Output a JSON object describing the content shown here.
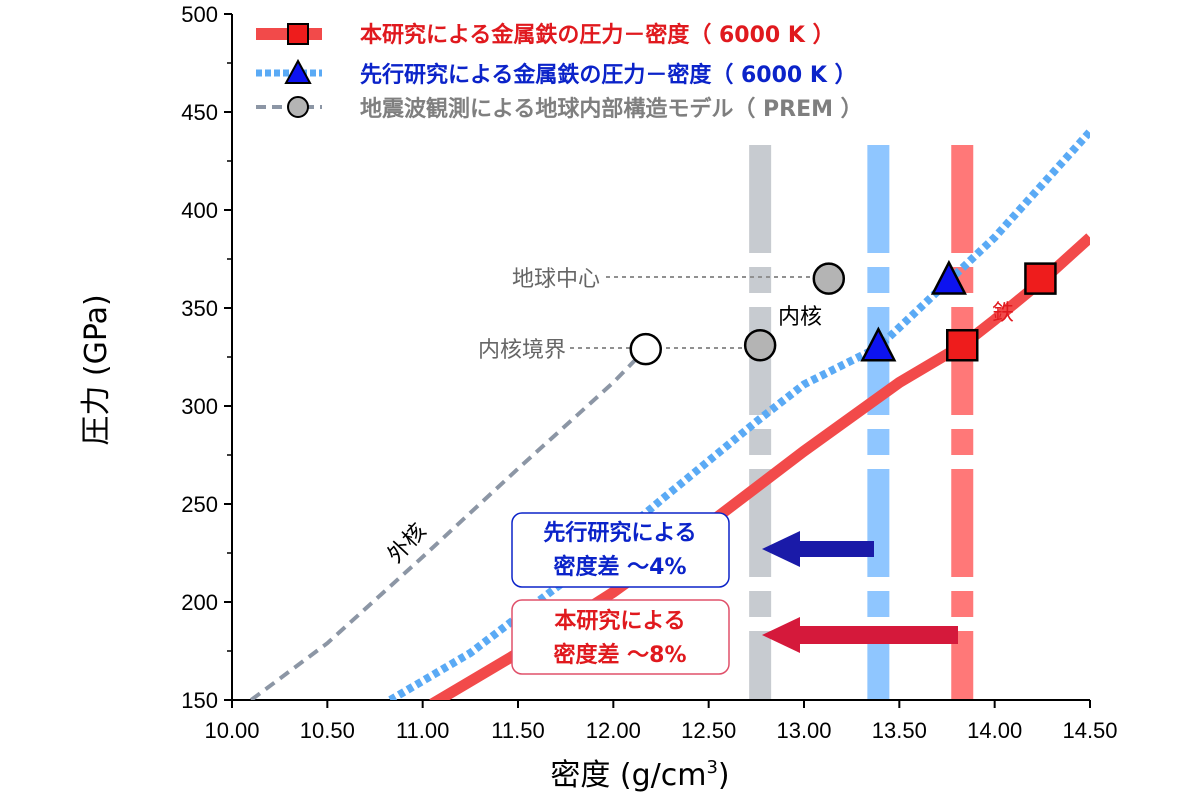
{
  "chart_data": {
    "type": "line",
    "xlabel": "密度 (g/cm",
    "xlabel_sup": "3",
    "xlabel_close": ")",
    "ylabel": "圧力 (GPa)",
    "xlim": [
      10.0,
      14.5
    ],
    "ylim": [
      150,
      500
    ],
    "xticks": [
      "10.00",
      "10.50",
      "11.00",
      "11.50",
      "12.00",
      "12.50",
      "13.00",
      "13.50",
      "14.00",
      "14.50"
    ],
    "yticks": [
      "150",
      "200",
      "250",
      "300",
      "350",
      "400",
      "450",
      "500"
    ],
    "legend": [
      {
        "label": "本研究による金属鉄の圧力－密度（ 6000 K ）",
        "color": "#e0191e"
      },
      {
        "label": "先行研究による金属鉄の圧力－密度（ 6000 K ）",
        "color": "#0b23c9"
      },
      {
        "label": "地震波観測による地球内部構造モデル（ PREM ）",
        "color": "#7f7f7f"
      }
    ],
    "series": [
      {
        "name": "本研究による金属鉄の圧力－密度（ 6000 K ）",
        "color": "#f24a4a",
        "marker": "square",
        "curve": [
          [
            11.05,
            148
          ],
          [
            11.5,
            174
          ],
          [
            12.0,
            205
          ],
          [
            12.5,
            240
          ],
          [
            13.0,
            277
          ],
          [
            13.5,
            312
          ],
          [
            13.83,
            331
          ],
          [
            14.0,
            344
          ],
          [
            14.25,
            364
          ],
          [
            14.5,
            386
          ]
        ],
        "points": [
          [
            13.83,
            331
          ],
          [
            14.24,
            365
          ]
        ]
      },
      {
        "name": "先行研究による金属鉄の圧力－密度（ 6000 K ）",
        "color": "#5aaaf5",
        "marker": "triangle",
        "curve": [
          [
            10.83,
            150
          ],
          [
            11.25,
            174
          ],
          [
            11.75,
            211
          ],
          [
            12.25,
            252
          ],
          [
            12.75,
            292
          ],
          [
            13.0,
            311
          ],
          [
            13.39,
            330
          ],
          [
            13.75,
            363
          ],
          [
            14.0,
            386
          ],
          [
            14.5,
            440
          ]
        ],
        "points": [
          [
            13.39,
            330
          ],
          [
            13.76,
            364
          ]
        ]
      },
      {
        "name": "地震波観測による地球内部構造モデル（ PREM ）",
        "color": "#8c96a5",
        "marker": "circle",
        "curve": [
          [
            10.1,
            150
          ],
          [
            10.5,
            179
          ],
          [
            11.0,
            223
          ],
          [
            11.5,
            268
          ],
          [
            12.0,
            312
          ],
          [
            12.17,
            329
          ]
        ],
        "points": [
          [
            12.17,
            329,
            "#ffffff"
          ],
          [
            12.77,
            331,
            "#b4b4b4"
          ],
          [
            13.13,
            365,
            "#b4b4b4"
          ]
        ]
      }
    ],
    "bands": [
      {
        "x": 12.77,
        "color": "#c7cbd0"
      },
      {
        "x": 13.39,
        "color": "#8fc6ff"
      },
      {
        "x": 13.83,
        "color": "#ff7878"
      }
    ],
    "annotations": {
      "earth_center": "地球中心",
      "inner_core": "内核",
      "icb": "内核境界",
      "outer_core": "外核",
      "iron": "鉄"
    },
    "boxes": {
      "prior": {
        "line1": "先行研究による",
        "line2": "密度差 ～4%"
      },
      "this": {
        "line1": "本研究による",
        "line2": "密度差 ～8%"
      }
    }
  }
}
